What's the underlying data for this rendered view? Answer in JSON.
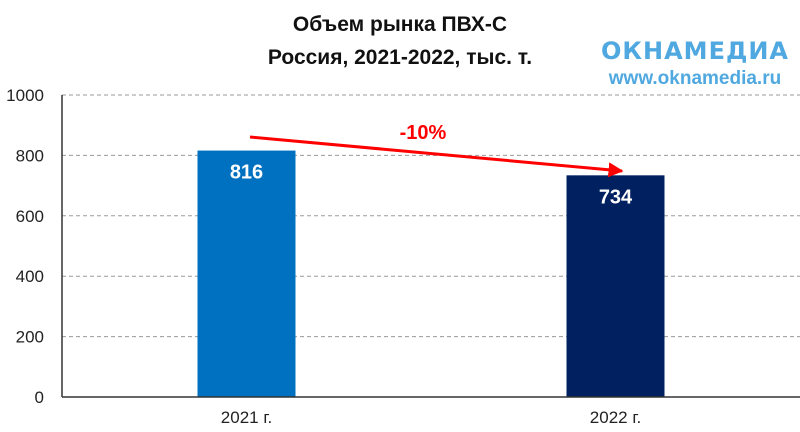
{
  "chart_data": {
    "type": "bar",
    "title_lines": [
      "Объем рынка ПВХ-С",
      "Россия, 2021-2022, тыс. т."
    ],
    "categories": [
      "2021 г.",
      "2022 г."
    ],
    "values": [
      816,
      734
    ],
    "data_labels": [
      "816",
      "734"
    ],
    "ylim": [
      0,
      1000
    ],
    "yticks": [
      0,
      200,
      400,
      600,
      800,
      1000
    ],
    "ytick_labels": [
      "0",
      "200",
      "400",
      "600",
      "800",
      "1000"
    ],
    "grid": true,
    "bar_colors": [
      "#0070C0",
      "#002060"
    ],
    "annotation": {
      "text": "-10%",
      "color": "#FF0000"
    }
  },
  "logo": {
    "name": "ОКНАМЕДИА",
    "url": "www.oknamedia.ru",
    "color": "#4FA8E0"
  }
}
